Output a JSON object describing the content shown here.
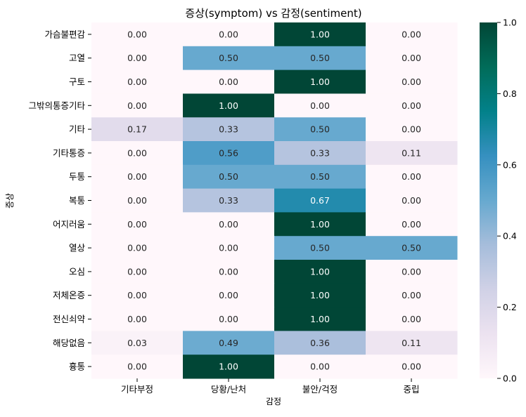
{
  "chart_data": {
    "type": "heatmap",
    "title": "증상(symptom) vs 감정(sentiment)",
    "xlabel": "감정",
    "ylabel": "증상",
    "columns": [
      "기타부정",
      "당황/난처",
      "불안/걱정",
      "중립"
    ],
    "rows": [
      "가슴불편감",
      "고열",
      "구토",
      "그밖의통증기타",
      "기타",
      "기타통증",
      "두통",
      "복통",
      "어지러움",
      "열상",
      "오심",
      "저체온증",
      "전신쇠약",
      "해당없음",
      "흉통"
    ],
    "values": [
      [
        0.0,
        0.0,
        1.0,
        0.0
      ],
      [
        0.0,
        0.5,
        0.5,
        0.0
      ],
      [
        0.0,
        0.0,
        1.0,
        0.0
      ],
      [
        0.0,
        1.0,
        0.0,
        0.0
      ],
      [
        0.17,
        0.33,
        0.5,
        0.0
      ],
      [
        0.0,
        0.56,
        0.33,
        0.11
      ],
      [
        0.0,
        0.5,
        0.5,
        0.0
      ],
      [
        0.0,
        0.33,
        0.67,
        0.0
      ],
      [
        0.0,
        0.0,
        1.0,
        0.0
      ],
      [
        0.0,
        0.0,
        0.5,
        0.5
      ],
      [
        0.0,
        0.0,
        1.0,
        0.0
      ],
      [
        0.0,
        0.0,
        1.0,
        0.0
      ],
      [
        0.0,
        0.0,
        1.0,
        0.0
      ],
      [
        0.03,
        0.49,
        0.36,
        0.11
      ],
      [
        0.0,
        1.0,
        0.0,
        0.0
      ]
    ],
    "value_format": "0.00",
    "colorbar": {
      "min": 0.0,
      "max": 1.0,
      "ticks": [
        "0.0",
        "0.2",
        "0.4",
        "0.6",
        "0.8",
        "1.0"
      ],
      "colormap": "PuBuGn",
      "stops": [
        "#fff7fb",
        "#ece2f0",
        "#d0d1e6",
        "#a6bddb",
        "#67a9cf",
        "#3690c0",
        "#02818a",
        "#016c59",
        "#014636"
      ]
    }
  }
}
